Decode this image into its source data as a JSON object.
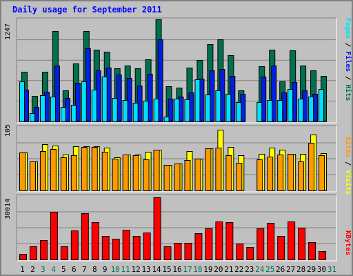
{
  "chart_data": [
    {
      "type": "bar",
      "panel": "pages-files-hits",
      "title": "Daily usage for September 2011",
      "y_max_label": "1247",
      "ylim": [
        0,
        1247
      ],
      "categories": [
        "1",
        "2",
        "3",
        "4",
        "5",
        "6",
        "7",
        "8",
        "9",
        "10",
        "11",
        "12",
        "13",
        "14",
        "15",
        "16",
        "17",
        "18",
        "19",
        "20",
        "21",
        "22",
        "23",
        "24",
        "25",
        "26",
        "27",
        "28",
        "29",
        "30",
        "31"
      ],
      "weekend_days": [
        "3",
        "4",
        "10",
        "11",
        "17",
        "18",
        "24",
        "25",
        "31"
      ],
      "legend": [
        "Pages",
        "Files",
        "Hits"
      ],
      "grid": true,
      "series": [
        {
          "name": "Hits",
          "color": "#007050",
          "values": [
            610,
            310,
            610,
            1100,
            380,
            710,
            1100,
            880,
            850,
            650,
            680,
            650,
            760,
            1247,
            430,
            410,
            660,
            750,
            940,
            1000,
            810,
            380,
            0,
            670,
            880,
            490,
            870,
            680,
            620,
            560,
            0
          ]
        },
        {
          "name": "Files",
          "color": "#0020e0",
          "values": [
            390,
            180,
            360,
            680,
            290,
            470,
            890,
            620,
            660,
            570,
            530,
            440,
            580,
            1000,
            280,
            300,
            350,
            520,
            620,
            640,
            560,
            340,
            0,
            550,
            680,
            350,
            480,
            380,
            340,
            0,
            0
          ]
        },
        {
          "name": "Pages",
          "color": "#00e0ff",
          "values": [
            490,
            100,
            320,
            300,
            180,
            200,
            490,
            390,
            550,
            290,
            260,
            230,
            250,
            280,
            60,
            280,
            270,
            510,
            330,
            380,
            340,
            240,
            0,
            240,
            260,
            260,
            400,
            280,
            300,
            400,
            0
          ]
        }
      ]
    },
    {
      "type": "bar",
      "panel": "sites-visits",
      "y_max_label": "105",
      "ylim": [
        0,
        105
      ],
      "categories": [
        "1",
        "2",
        "3",
        "4",
        "5",
        "6",
        "7",
        "8",
        "9",
        "10",
        "11",
        "12",
        "13",
        "14",
        "15",
        "16",
        "17",
        "18",
        "19",
        "20",
        "21",
        "22",
        "23",
        "24",
        "25",
        "26",
        "27",
        "28",
        "29",
        "30",
        "31"
      ],
      "legend": [
        "Sites",
        "Visits"
      ],
      "grid": true,
      "series": [
        {
          "name": "Visits",
          "color": "#ffff00",
          "values": [
            63,
            48,
            76,
            74,
            59,
            73,
            73,
            73,
            71,
            55,
            59,
            59,
            64,
            67,
            42,
            44,
            65,
            52,
            70,
            100,
            72,
            58,
            0,
            60,
            71,
            67,
            60,
            61,
            93,
            62,
            0
          ]
        },
        {
          "name": "Sites",
          "color": "#ff9900",
          "values": [
            63,
            48,
            65,
            68,
            55,
            58,
            72,
            72,
            64,
            52,
            59,
            58,
            51,
            67,
            42,
            44,
            50,
            52,
            70,
            71,
            58,
            46,
            0,
            51,
            56,
            59,
            61,
            48,
            79,
            58,
            0
          ]
        }
      ]
    },
    {
      "type": "bar",
      "panel": "kbytes",
      "y_max_label": "30014",
      "ylim": [
        0,
        30014
      ],
      "categories": [
        "1",
        "2",
        "3",
        "4",
        "5",
        "6",
        "7",
        "8",
        "9",
        "10",
        "11",
        "12",
        "13",
        "14",
        "15",
        "16",
        "17",
        "18",
        "19",
        "20",
        "21",
        "22",
        "23",
        "24",
        "25",
        "26",
        "27",
        "28",
        "29",
        "30",
        "31"
      ],
      "legend": [
        "KBytes"
      ],
      "grid": true,
      "series": [
        {
          "name": "KBytes",
          "color": "#ff0000",
          "values": [
            2500,
            6300,
            9200,
            22500,
            6100,
            13600,
            22000,
            17500,
            11200,
            9700,
            14100,
            11200,
            12800,
            29200,
            6200,
            7800,
            7800,
            12300,
            14800,
            18100,
            17700,
            7400,
            6000,
            14700,
            17200,
            11200,
            18000,
            14900,
            8100,
            3800,
            0
          ]
        }
      ]
    }
  ],
  "legend_colors": {
    "pages": "#00e0ff",
    "files": "#0020e0",
    "hits": "#007050",
    "sites": "#ff9900",
    "visits": "#ffff00",
    "kbytes": "#ff0000",
    "separator": "#000000"
  },
  "legend_separator": " / ",
  "weekday_label_color": "#000000",
  "weekend_label_color": "#007050"
}
